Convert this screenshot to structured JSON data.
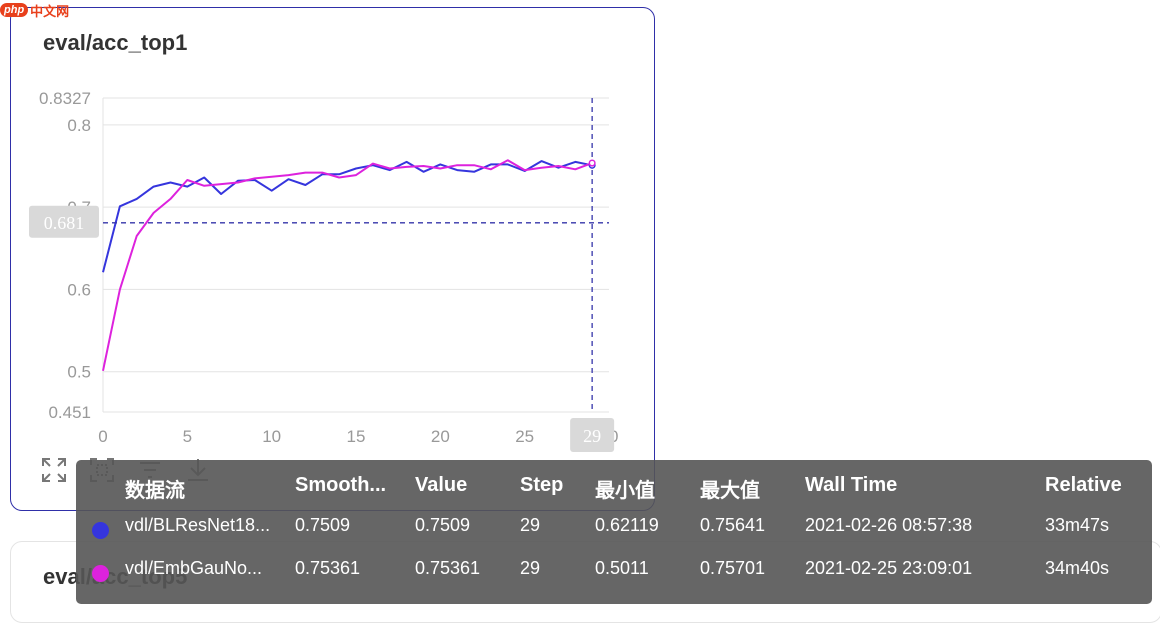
{
  "brand": {
    "badge": "php",
    "name": "中文网",
    "color": "#e8401c"
  },
  "card": {
    "title": "eval/acc_top1",
    "icons": [
      "expand-icon",
      "fit-selection-icon",
      "filter-list-icon",
      "download-icon"
    ]
  },
  "card2": {
    "title": "eval/acc_top5"
  },
  "chart_data": {
    "type": "line",
    "xlim": [
      0,
      30
    ],
    "ylim": [
      0.451,
      0.8327
    ],
    "x_ticks": [
      "0",
      "5",
      "10",
      "15",
      "20",
      "25",
      "30"
    ],
    "y_ticks": [
      "0.451",
      "0.5",
      "0.6",
      "0.7",
      "0.8",
      "0.8327"
    ],
    "grid": true,
    "crosshair": {
      "x": 29,
      "y": 0.681,
      "x_label": "29",
      "y_label": "0.681"
    },
    "series": [
      {
        "name": "vdl/BLResNet18...",
        "color": "#3535dd",
        "x": [
          0,
          1,
          2,
          3,
          4,
          5,
          6,
          7,
          8,
          9,
          10,
          11,
          12,
          13,
          14,
          15,
          16,
          17,
          18,
          19,
          20,
          21,
          22,
          23,
          24,
          25,
          26,
          27,
          28,
          29
        ],
        "values": [
          0.621,
          0.701,
          0.71,
          0.725,
          0.73,
          0.725,
          0.736,
          0.716,
          0.732,
          0.733,
          0.72,
          0.734,
          0.727,
          0.74,
          0.74,
          0.747,
          0.751,
          0.745,
          0.755,
          0.743,
          0.752,
          0.745,
          0.743,
          0.752,
          0.752,
          0.744,
          0.756,
          0.748,
          0.755,
          0.7509
        ]
      },
      {
        "name": "vdl/EmbGauNo...",
        "color": "#dd22dd",
        "x": [
          0,
          1,
          2,
          3,
          4,
          5,
          6,
          7,
          8,
          9,
          10,
          11,
          12,
          13,
          14,
          15,
          16,
          17,
          18,
          19,
          20,
          21,
          22,
          23,
          24,
          25,
          26,
          27,
          28,
          29
        ],
        "values": [
          0.5011,
          0.6,
          0.665,
          0.693,
          0.71,
          0.733,
          0.726,
          0.728,
          0.73,
          0.735,
          0.737,
          0.739,
          0.742,
          0.742,
          0.736,
          0.739,
          0.753,
          0.747,
          0.749,
          0.75,
          0.747,
          0.751,
          0.751,
          0.746,
          0.757,
          0.745,
          0.748,
          0.75,
          0.746,
          0.75361
        ]
      }
    ]
  },
  "tooltip": {
    "headers": [
      "数据流",
      "Smooth...",
      "Value",
      "Step",
      "最小值",
      "最大值",
      "Wall Time",
      "Relative"
    ],
    "rows": [
      {
        "color": "#3535dd",
        "cells": [
          "vdl/BLResNet18...",
          "0.7509",
          "0.7509",
          "29",
          "0.62119",
          "0.75641",
          "2021-02-26 08:57:38",
          "33m47s"
        ]
      },
      {
        "color": "#dd22dd",
        "cells": [
          "vdl/EmbGauNo...",
          "0.75361",
          "0.75361",
          "29",
          "0.5011",
          "0.75701",
          "2021-02-25 23:09:01",
          "34m40s"
        ]
      }
    ]
  }
}
